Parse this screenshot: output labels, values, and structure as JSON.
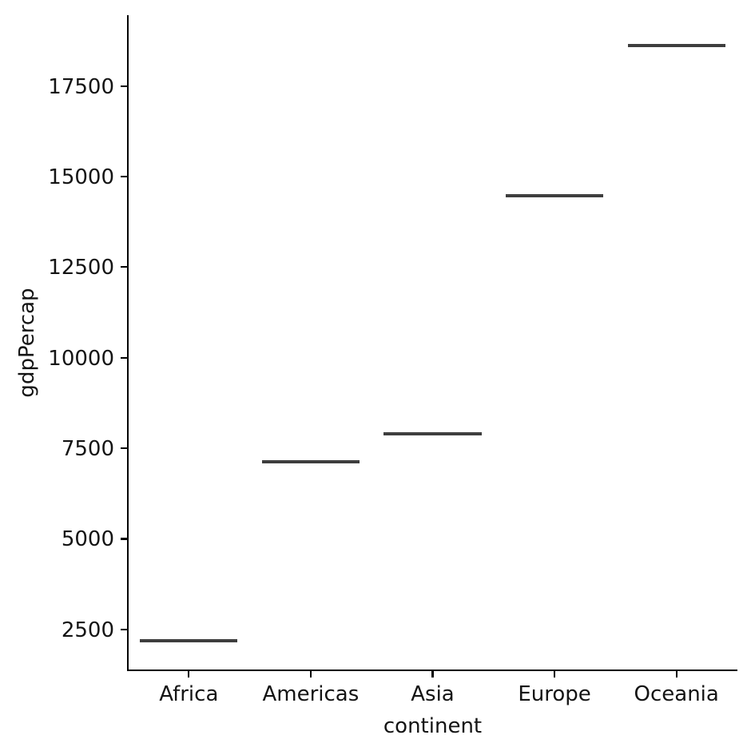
{
  "chart_data": {
    "type": "scatter",
    "mark": "horizontal-dash",
    "title": "",
    "xlabel": "continent",
    "ylabel": "gdpPercap",
    "categories": [
      "Africa",
      "Americas",
      "Asia",
      "Europe",
      "Oceania"
    ],
    "values": [
      2193.75,
      7136.11,
      7902.15,
      14469.48,
      18621.61
    ],
    "yticks": [
      2500,
      5000,
      7500,
      10000,
      12500,
      15000,
      17500
    ],
    "ylim": [
      1372.4,
      19443.2
    ],
    "xlim": [
      -0.5,
      4.5
    ],
    "dash_rel_width": 0.8,
    "grid": false,
    "legend": "none",
    "colors": {
      "dash": "#3e3e3e",
      "axis": "#000000",
      "text": "#141414",
      "background": "#ffffff"
    }
  }
}
